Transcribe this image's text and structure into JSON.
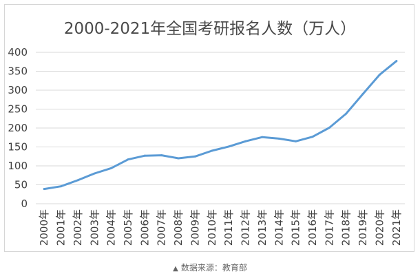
{
  "source": {
    "icon": "triangle-up-icon",
    "text": "数据来源：教育部"
  },
  "chart_data": {
    "type": "line",
    "title": "2000-2021年全国考研报名人数（万人）",
    "xlabel": "",
    "ylabel": "",
    "ylim": [
      0,
      400
    ],
    "yticks": [
      0,
      50,
      100,
      150,
      200,
      250,
      300,
      350,
      400
    ],
    "grid": true,
    "legend": "none",
    "categories": [
      "2000年",
      "2001年",
      "2002年",
      "2003年",
      "2004年",
      "2005年",
      "2006年",
      "2007年",
      "2008年",
      "2009年",
      "2010年",
      "2011年",
      "2012年",
      "2013年",
      "2014年",
      "2015年",
      "2016年",
      "2017年",
      "2018年",
      "2019年",
      "2020年",
      "2021年"
    ],
    "series": [
      {
        "color": "#5b9bd5",
        "values": [
          39,
          46,
          62,
          80,
          94,
          117,
          127,
          128,
          120,
          125,
          140,
          151,
          165,
          176,
          172,
          165,
          177,
          201,
          238,
          290,
          341,
          377
        ]
      }
    ]
  }
}
